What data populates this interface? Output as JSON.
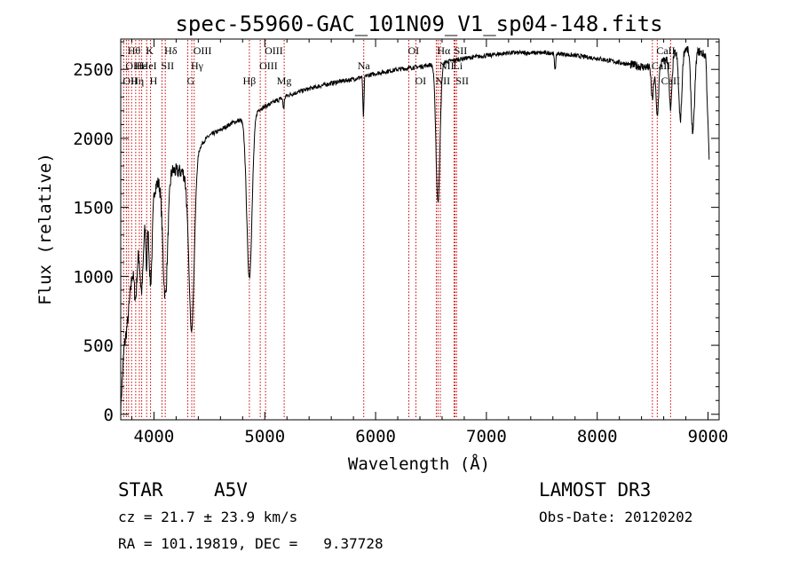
{
  "chart_data": {
    "type": "line",
    "title": "spec-55960-GAC_101N09_V1_sp04-148.fits",
    "xlabel": "Wavelength (Å)",
    "ylabel": "Flux (relative)",
    "xlim": [
      3700,
      9100
    ],
    "ylim": [
      -40,
      2720
    ],
    "x_ticks": [
      4000,
      5000,
      6000,
      7000,
      8000,
      9000
    ],
    "y_ticks": [
      0,
      500,
      1000,
      1500,
      2000,
      2500
    ],
    "continuum": {
      "x": [
        3700,
        3730,
        3760,
        3800,
        3850,
        3900,
        3950,
        4000,
        4050,
        4100,
        4150,
        4200,
        4250,
        4300,
        4350,
        4400,
        4450,
        4500,
        4600,
        4700,
        4800,
        4900,
        5000,
        5100,
        5200,
        5400,
        5600,
        5800,
        6000,
        6200,
        6400,
        6600,
        6800,
        7000,
        7200,
        7400,
        7600,
        7800,
        8000,
        8200,
        8400,
        8500,
        8600,
        8700,
        8800,
        8900,
        8980,
        9010
      ],
      "y": [
        50,
        480,
        650,
        1000,
        1200,
        1350,
        1500,
        1640,
        1700,
        1760,
        1780,
        1760,
        1760,
        1740,
        1870,
        1920,
        1980,
        2020,
        2060,
        2110,
        2140,
        2190,
        2230,
        2270,
        2310,
        2360,
        2400,
        2430,
        2470,
        2500,
        2520,
        2550,
        2580,
        2600,
        2620,
        2620,
        2620,
        2600,
        2580,
        2550,
        2520,
        2510,
        2560,
        2620,
        2650,
        2640,
        2600,
        1850
      ]
    },
    "absorption": [
      {
        "center": 3835,
        "depth": 300,
        "width": 12
      },
      {
        "center": 3889,
        "depth": 420,
        "width": 14
      },
      {
        "center": 3933,
        "depth": 380,
        "width": 6
      },
      {
        "center": 3970,
        "depth": 600,
        "width": 14
      },
      {
        "center": 4102,
        "depth": 900,
        "width": 22
      },
      {
        "center": 4340,
        "depth": 1230,
        "width": 24
      },
      {
        "center": 4861,
        "depth": 1180,
        "width": 24
      },
      {
        "center": 5170,
        "depth": 80,
        "width": 6
      },
      {
        "center": 5890,
        "depth": 300,
        "width": 5
      },
      {
        "center": 6563,
        "depth": 1010,
        "width": 18
      },
      {
        "center": 7620,
        "depth": 110,
        "width": 7
      },
      {
        "center": 8498,
        "depth": 230,
        "width": 10
      },
      {
        "center": 8542,
        "depth": 360,
        "width": 12
      },
      {
        "center": 8662,
        "depth": 390,
        "width": 12
      },
      {
        "center": 8750,
        "depth": 500,
        "width": 14
      },
      {
        "center": 8863,
        "depth": 600,
        "width": 16
      }
    ],
    "series": [
      {
        "name": "spectrum",
        "color": "#000000"
      }
    ],
    "lines": [
      {
        "wave": 3727,
        "label": "OII",
        "row": 2,
        "align": "start"
      },
      {
        "wave": 3751,
        "label": "OII",
        "row": 1,
        "align": "start"
      },
      {
        "wave": 3771,
        "label": "Hθ",
        "row": 0,
        "align": "start"
      },
      {
        "wave": 3798,
        "label": "Hη",
        "row": 2,
        "align": "start"
      },
      {
        "wave": 3835,
        "label": "Hε",
        "row": 1,
        "align": "start"
      },
      {
        "wave": 3868,
        "label": "",
        "row": 1,
        "align": "start"
      },
      {
        "wave": 3889,
        "label": "HeI",
        "row": 1,
        "align": "start"
      },
      {
        "wave": 3934,
        "label": "K",
        "row": 0,
        "align": "start"
      },
      {
        "wave": 3969,
        "label": "H",
        "row": 2,
        "align": "start"
      },
      {
        "wave": 4072,
        "label": "SII",
        "row": 1,
        "align": "start"
      },
      {
        "wave": 4102,
        "label": "Hδ",
        "row": 0,
        "align": "start"
      },
      {
        "wave": 4305,
        "label": "G",
        "row": 2,
        "align": "start"
      },
      {
        "wave": 4341,
        "label": "Hγ",
        "row": 1,
        "align": "start"
      },
      {
        "wave": 4363,
        "label": "OIII",
        "row": 0,
        "align": "start"
      },
      {
        "wave": 4861,
        "label": "Hβ",
        "row": 2,
        "align": "middle"
      },
      {
        "wave": 4959,
        "label": "OIII",
        "row": 1,
        "align": "start"
      },
      {
        "wave": 5007,
        "label": "OIII",
        "row": 0,
        "align": "start"
      },
      {
        "wave": 5175,
        "label": "Mg",
        "row": 2,
        "align": "middle"
      },
      {
        "wave": 5893,
        "label": "Na",
        "row": 1,
        "align": "middle"
      },
      {
        "wave": 6300,
        "label": "OI",
        "row": 0,
        "align": "start"
      },
      {
        "wave": 6364,
        "label": "OI",
        "row": 2,
        "align": "start"
      },
      {
        "wave": 6548,
        "label": "NII",
        "row": 2,
        "align": "start"
      },
      {
        "wave": 6563,
        "label": "Hα",
        "row": 0,
        "align": "start"
      },
      {
        "wave": 6584,
        "label": "NII",
        "row": 1,
        "align": "start"
      },
      {
        "wave": 6708,
        "label": "Li",
        "row": 1,
        "align": "start"
      },
      {
        "wave": 6717,
        "label": "SII",
        "row": 0,
        "align": "start"
      },
      {
        "wave": 6731,
        "label": "SII",
        "row": 2,
        "align": "start"
      },
      {
        "wave": 8498,
        "label": "CaII",
        "row": 1,
        "align": "start"
      },
      {
        "wave": 8542,
        "label": "CaII",
        "row": 0,
        "align": "start"
      },
      {
        "wave": 8662,
        "label": "CaII",
        "row": 2,
        "align": "middle"
      }
    ]
  },
  "info": {
    "class": "STAR",
    "subclass": "A5V",
    "survey": "LAMOST DR3",
    "cz": "cz = 21.7 ± 23.9 km/s",
    "obs_date": "Obs-Date: 20120202",
    "radec": "RA = 101.19819, DEC =   9.37728"
  },
  "colors": {
    "axis": "#000000",
    "spectrum": "#000000",
    "line_marker": "#cc0000"
  }
}
